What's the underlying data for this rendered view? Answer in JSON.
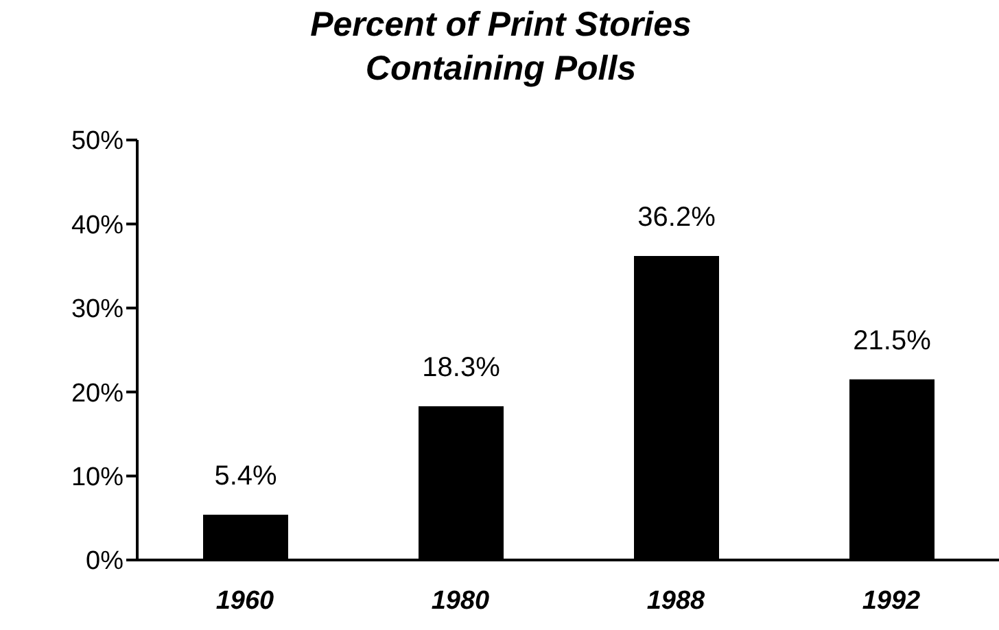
{
  "chart_data": {
    "type": "bar",
    "title": "Percent of Print Stories Containing Polls",
    "categories": [
      "1960",
      "1980",
      "1988",
      "1992"
    ],
    "values": [
      5.4,
      18.3,
      36.2,
      21.5
    ],
    "value_labels": [
      "5.4%",
      "18.3%",
      "36.2%",
      "21.5%"
    ],
    "color": "#000000",
    "ylim": [
      0,
      50
    ],
    "yticks": [
      {
        "value": 0,
        "label": "0%"
      },
      {
        "value": 10,
        "label": "10%"
      },
      {
        "value": 20,
        "label": "20%"
      },
      {
        "value": 30,
        "label": "30%"
      },
      {
        "value": 40,
        "label": "40%"
      },
      {
        "value": 50,
        "label": "50%"
      }
    ],
    "grid": false,
    "legend": false
  }
}
